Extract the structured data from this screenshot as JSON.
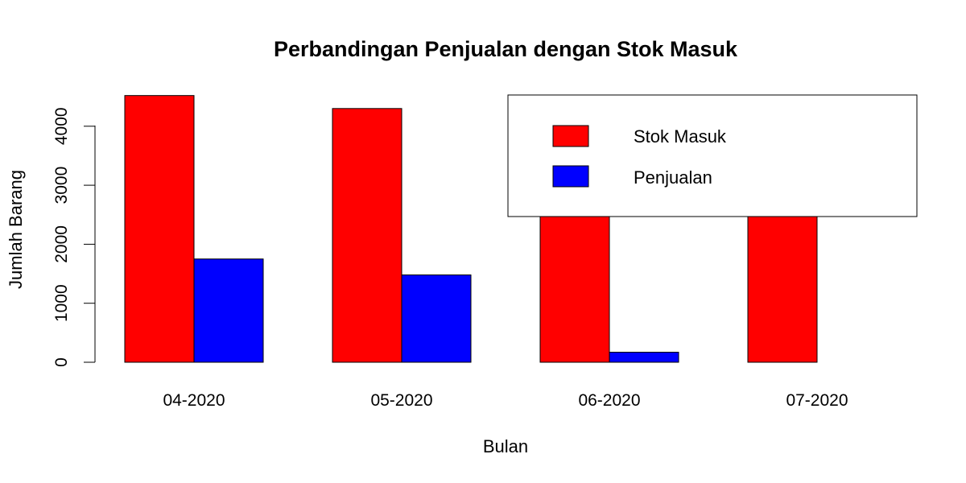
{
  "chart_data": {
    "type": "bar",
    "title": "Perbandingan Penjualan dengan Stok Masuk",
    "xlabel": "Bulan",
    "ylabel": "Jumlah Barang",
    "categories": [
      "04-2020",
      "05-2020",
      "06-2020",
      "07-2020"
    ],
    "series": [
      {
        "name": "Stok Masuk",
        "color": "#ff0000",
        "values": [
          4520,
          4300,
          3700,
          3700
        ]
      },
      {
        "name": "Penjualan",
        "color": "#0000ff",
        "values": [
          1750,
          1480,
          170,
          0
        ]
      }
    ],
    "yticks": [
      0,
      1000,
      2000,
      3000,
      4000
    ],
    "ylim": [
      0,
      4520
    ],
    "grid": false,
    "legend_position": "top-right"
  }
}
